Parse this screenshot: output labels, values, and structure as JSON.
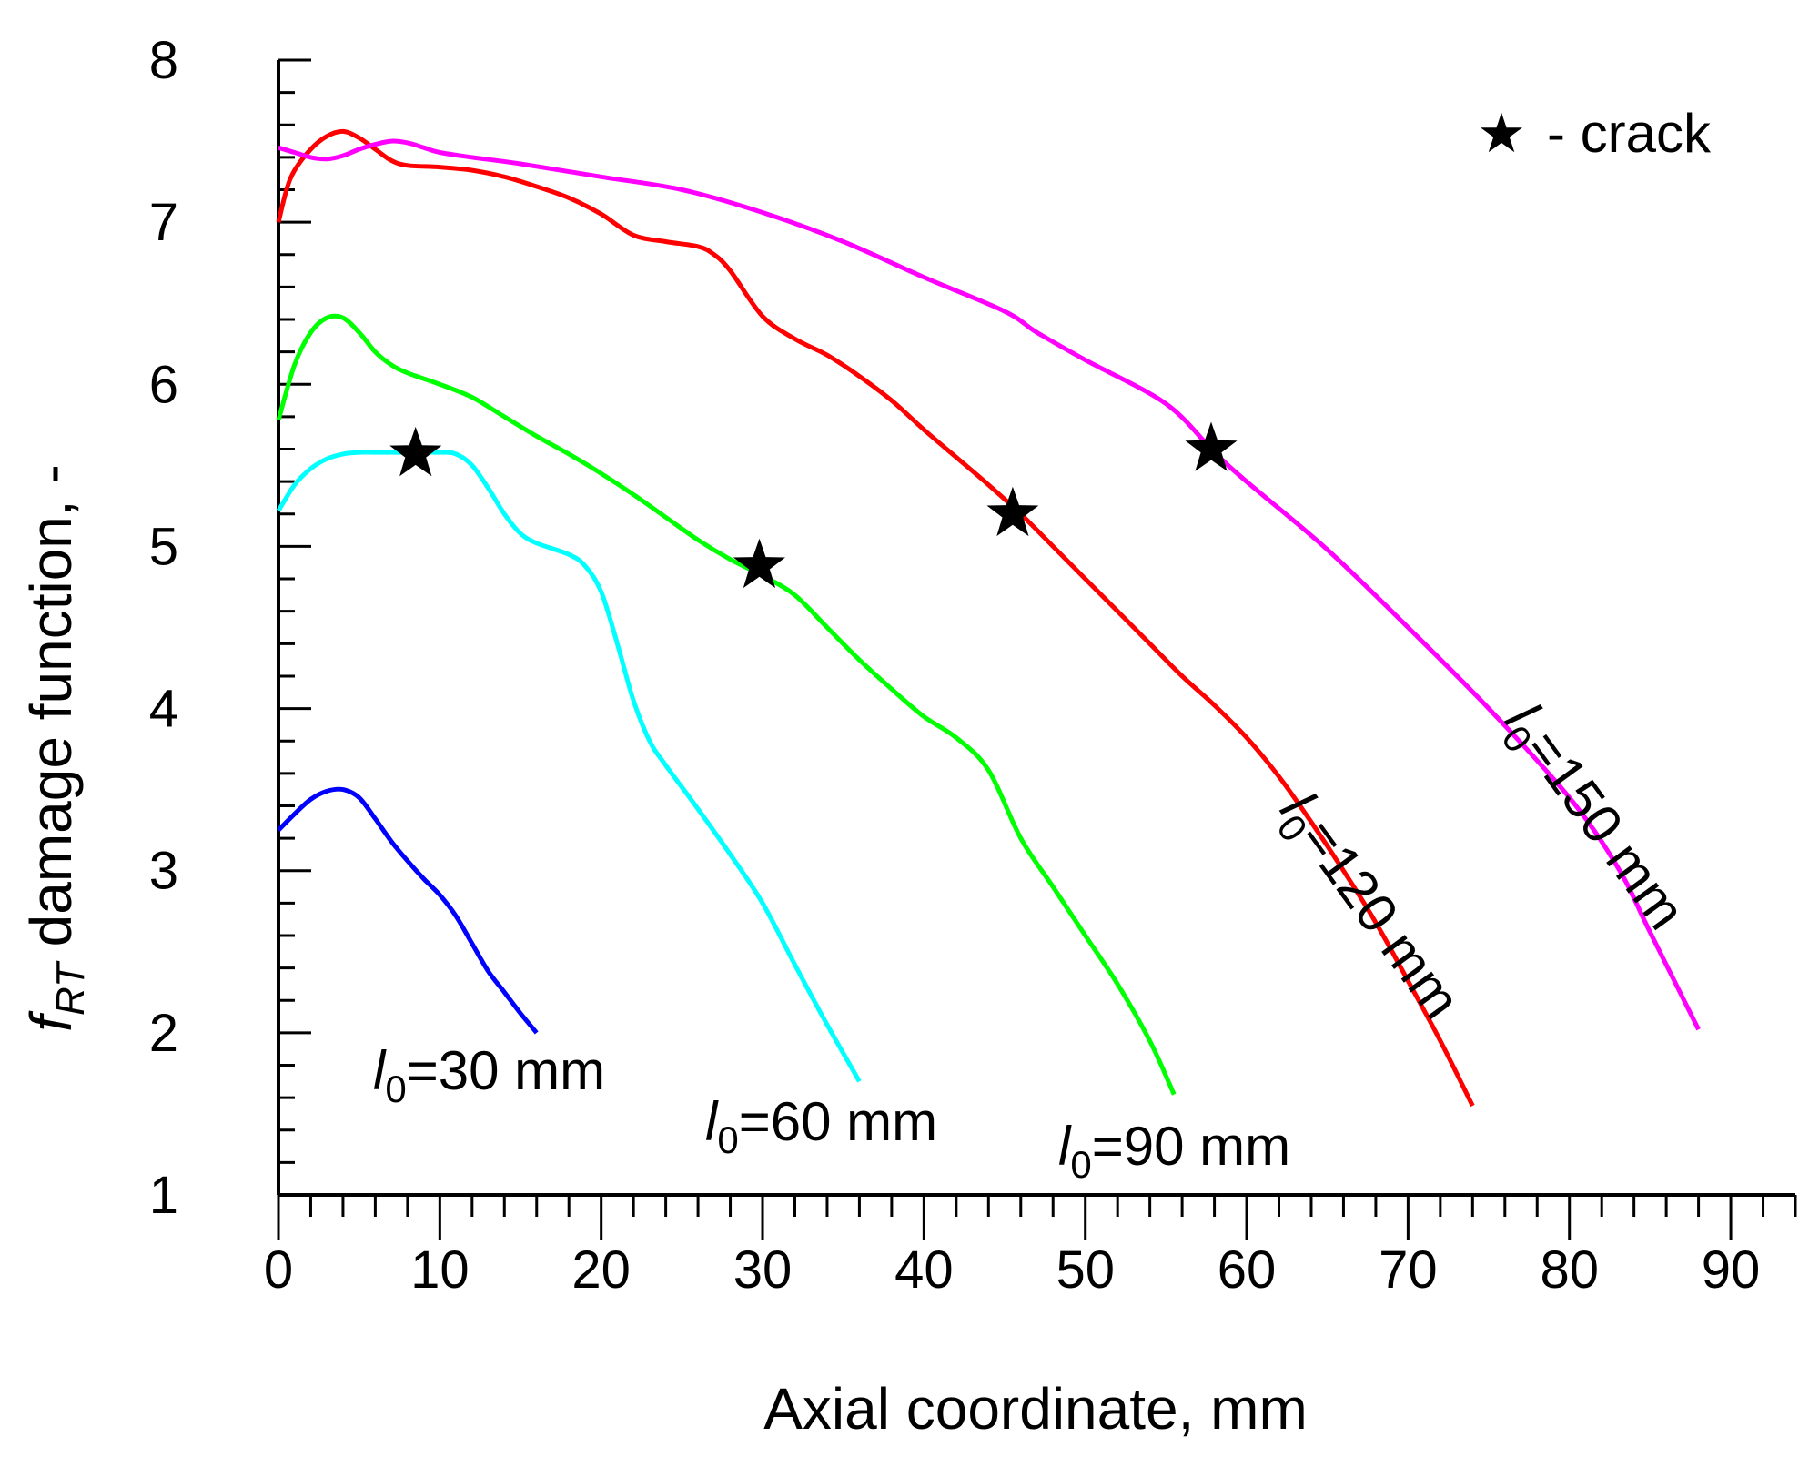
{
  "chart_data": {
    "type": "line",
    "xlabel": "Axial coordinate, mm",
    "ylabel": {
      "symbol": "f",
      "subscript": "RT",
      "rest": " damage function, -"
    },
    "xlim": [
      0,
      94
    ],
    "ylim": [
      1,
      8
    ],
    "xticks": [
      0,
      10,
      20,
      30,
      40,
      50,
      60,
      70,
      80,
      90
    ],
    "yticks": [
      1,
      2,
      3,
      4,
      5,
      6,
      7,
      8
    ],
    "legend": {
      "marker": "★",
      "text": "- crack",
      "placement": "top-right"
    },
    "series": [
      {
        "name": "l0=30 mm",
        "label_parts": {
          "symbol": "l",
          "subscript": "0",
          "rest": "=30 mm"
        },
        "color": "#0000ff",
        "x": [
          0,
          1,
          2,
          3,
          4,
          5,
          6,
          7,
          8,
          9,
          10,
          11,
          12,
          13,
          14,
          15,
          16
        ],
        "y": [
          3.25,
          3.35,
          3.44,
          3.49,
          3.5,
          3.45,
          3.32,
          3.18,
          3.06,
          2.95,
          2.85,
          2.72,
          2.55,
          2.38,
          2.25,
          2.12,
          2.0
        ]
      },
      {
        "name": "l0=60 mm",
        "label_parts": {
          "symbol": "l",
          "subscript": "0",
          "rest": "=60 mm"
        },
        "color": "#00ffff",
        "x": [
          0,
          1,
          2,
          3,
          4,
          5,
          6,
          8,
          10,
          11,
          12,
          13,
          14,
          15,
          16,
          18,
          19,
          20,
          21,
          22,
          23,
          24,
          26,
          28,
          30,
          32,
          34,
          36
        ],
        "y": [
          5.22,
          5.38,
          5.48,
          5.54,
          5.57,
          5.58,
          5.58,
          5.58,
          5.58,
          5.57,
          5.5,
          5.36,
          5.2,
          5.08,
          5.02,
          4.95,
          4.88,
          4.72,
          4.4,
          4.05,
          3.8,
          3.65,
          3.38,
          3.1,
          2.8,
          2.42,
          2.05,
          1.7
        ]
      },
      {
        "name": "l0=90 mm",
        "label_parts": {
          "symbol": "l",
          "subscript": "0",
          "rest": "=90 mm"
        },
        "color": "#00ff00",
        "x": [
          0,
          1,
          2,
          3,
          4,
          5,
          6,
          7,
          8,
          10,
          12,
          14,
          16,
          18,
          20,
          22,
          24,
          26,
          28,
          30,
          32,
          34,
          36,
          38,
          40,
          42,
          44,
          46,
          48,
          50,
          52,
          54,
          55.5
        ],
        "y": [
          5.78,
          6.12,
          6.32,
          6.41,
          6.41,
          6.32,
          6.2,
          6.12,
          6.07,
          6.0,
          5.92,
          5.8,
          5.68,
          5.57,
          5.45,
          5.32,
          5.18,
          5.04,
          4.92,
          4.82,
          4.7,
          4.5,
          4.3,
          4.12,
          3.95,
          3.82,
          3.62,
          3.2,
          2.9,
          2.6,
          2.3,
          1.95,
          1.62
        ]
      },
      {
        "name": "l0=120 mm",
        "label_parts": {
          "symbol": "l",
          "subscript": "0",
          "rest": "=120 mm"
        },
        "color": "#ff0000",
        "x": [
          0,
          0.5,
          1,
          2,
          3,
          4,
          5,
          6,
          7,
          8,
          10,
          12,
          14,
          16,
          18,
          20,
          22,
          24,
          26,
          27,
          28,
          30,
          32,
          34,
          36,
          38,
          40,
          42,
          44,
          46,
          48,
          50,
          52,
          54,
          56,
          58,
          60,
          62,
          64,
          66,
          68,
          70,
          72,
          74
        ],
        "y": [
          7.0,
          7.2,
          7.32,
          7.45,
          7.53,
          7.56,
          7.52,
          7.45,
          7.38,
          7.35,
          7.34,
          7.32,
          7.28,
          7.22,
          7.15,
          7.05,
          6.92,
          6.88,
          6.85,
          6.8,
          6.7,
          6.42,
          6.28,
          6.18,
          6.05,
          5.9,
          5.72,
          5.55,
          5.38,
          5.2,
          5.0,
          4.8,
          4.6,
          4.4,
          4.2,
          4.02,
          3.82,
          3.58,
          3.3,
          3.0,
          2.68,
          2.32,
          1.95,
          1.55
        ]
      },
      {
        "name": "l0=150 mm",
        "label_parts": {
          "symbol": "l",
          "subscript": "0",
          "rest": "=150 mm"
        },
        "color": "#ff00ff",
        "x": [
          0,
          1,
          2,
          3,
          4,
          5,
          6,
          7,
          8,
          9,
          10,
          12,
          15,
          20,
          25,
          30,
          35,
          40,
          45,
          47,
          50,
          55,
          58,
          60,
          65,
          70,
          75,
          80,
          83,
          85,
          88
        ],
        "y": [
          7.46,
          7.43,
          7.4,
          7.39,
          7.41,
          7.45,
          7.48,
          7.5,
          7.49,
          7.46,
          7.43,
          7.4,
          7.36,
          7.28,
          7.2,
          7.06,
          6.88,
          6.66,
          6.45,
          6.32,
          6.15,
          5.88,
          5.58,
          5.4,
          4.98,
          4.5,
          4.0,
          3.45,
          3.02,
          2.62,
          2.02
        ]
      }
    ],
    "crack_points": [
      {
        "x": 8.5,
        "y": 5.57
      },
      {
        "x": 29.8,
        "y": 4.88
      },
      {
        "x": 45.5,
        "y": 5.2
      },
      {
        "x": 57.8,
        "y": 5.6
      }
    ]
  }
}
